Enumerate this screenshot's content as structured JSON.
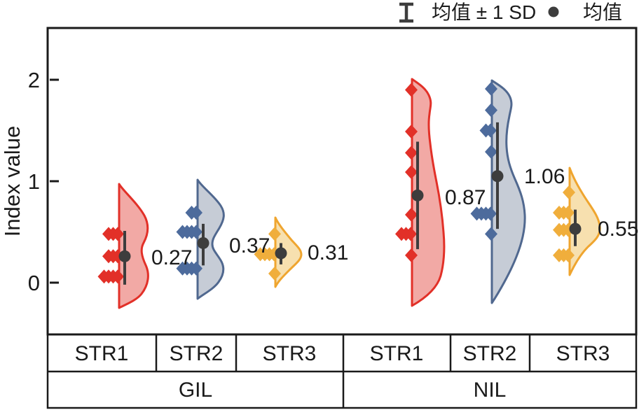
{
  "figure_legend": {
    "errorbar_label": "均值 ± 1 SD",
    "mean_label": "均值"
  },
  "y_axis": {
    "title": "Index value",
    "ticks": [
      "2",
      "1",
      "0"
    ]
  },
  "x_axis": {
    "strata": [
      "STR1",
      "STR2",
      "STR3",
      "STR1",
      "STR2",
      "STR3"
    ],
    "groups": [
      "GIL",
      "NIL"
    ]
  },
  "chart_data": {
    "type": "violin",
    "title": "",
    "xlabel": "",
    "ylabel": "Index value",
    "ylim": [
      -0.5,
      2.5
    ],
    "y_ticks": [
      0,
      1,
      2
    ],
    "facets": [
      "GIL",
      "NIL"
    ],
    "strata": [
      "STR1",
      "STR2",
      "STR3"
    ],
    "legend_entries": [
      "均值 ± 1 SD",
      "均值"
    ],
    "marks_color": "#3d3d3d",
    "frame_color": "#1a1a1a",
    "groups": [
      {
        "facet": "GIL",
        "stratum": "STR1",
        "mean_label": "0.27",
        "mean_value_est": 0.26,
        "errorbar_est": {
          "top": 0.51,
          "bottom": -0.02
        },
        "points_est": [
          {
            "value": 0.48,
            "count": 3
          },
          {
            "value": 0.26,
            "count": 3
          },
          {
            "value": 0.06,
            "count": 4
          }
        ],
        "colors": {
          "stroke": "#e23028",
          "fill": "#f2a9a5",
          "marker": "#e23028"
        }
      },
      {
        "facet": "GIL",
        "stratum": "STR2",
        "mean_label": "0.37",
        "mean_value_est": 0.39,
        "errorbar_est": {
          "top": 0.58,
          "bottom": 0.17
        },
        "points_est": [
          {
            "value": 0.69,
            "count": 2
          },
          {
            "value": 0.5,
            "count": 4
          },
          {
            "value": 0.14,
            "count": 4
          }
        ],
        "colors": {
          "stroke": "#50688f",
          "fill": "#c6ccd6",
          "marker": "#4d6b9c"
        }
      },
      {
        "facet": "GIL",
        "stratum": "STR3",
        "mean_label": "0.31",
        "mean_value_est": 0.29,
        "errorbar_est": {
          "top": 0.39,
          "bottom": 0.18
        },
        "points_est": [
          {
            "value": 0.48,
            "count": 1
          },
          {
            "value": 0.28,
            "count": 4
          },
          {
            "value": 0.09,
            "count": 1
          }
        ],
        "colors": {
          "stroke": "#efa52f",
          "fill": "#f7e0af",
          "marker": "#f0ae3c"
        }
      },
      {
        "facet": "NIL",
        "stratum": "STR1",
        "mean_label": "0.87",
        "mean_value_est": 0.86,
        "errorbar_est": {
          "top": 1.39,
          "bottom": 0.33
        },
        "points_est": [
          {
            "value": 1.9,
            "count": 1
          },
          {
            "value": 1.49,
            "count": 1
          },
          {
            "value": 1.28,
            "count": 1
          },
          {
            "value": 1.09,
            "count": 1
          },
          {
            "value": 0.67,
            "count": 1
          },
          {
            "value": 0.48,
            "count": 3
          },
          {
            "value": 0.27,
            "count": 1
          }
        ],
        "colors": {
          "stroke": "#e23028",
          "fill": "#f2a9a5",
          "marker": "#e23028"
        }
      },
      {
        "facet": "NIL",
        "stratum": "STR2",
        "mean_label": "1.06",
        "mean_value_est": 1.05,
        "errorbar_est": {
          "top": 1.58,
          "bottom": 0.53
        },
        "points_est": [
          {
            "value": 1.91,
            "count": 1
          },
          {
            "value": 1.7,
            "count": 1
          },
          {
            "value": 1.5,
            "count": 2
          },
          {
            "value": 1.29,
            "count": 1
          },
          {
            "value": 0.68,
            "count": 4
          },
          {
            "value": 0.48,
            "count": 1
          }
        ],
        "colors": {
          "stroke": "#50688f",
          "fill": "#c6ccd6",
          "marker": "#4d6b9c"
        }
      },
      {
        "facet": "NIL",
        "stratum": "STR3",
        "mean_label": "0.55",
        "mean_value_est": 0.53,
        "errorbar_est": {
          "top": 0.72,
          "bottom": 0.36
        },
        "points_est": [
          {
            "value": 0.89,
            "count": 1
          },
          {
            "value": 0.69,
            "count": 3
          },
          {
            "value": 0.52,
            "count": 3
          },
          {
            "value": 0.27,
            "count": 3
          }
        ],
        "colors": {
          "stroke": "#efa52f",
          "fill": "#f7e0af",
          "marker": "#f0ae3c"
        }
      }
    ]
  }
}
